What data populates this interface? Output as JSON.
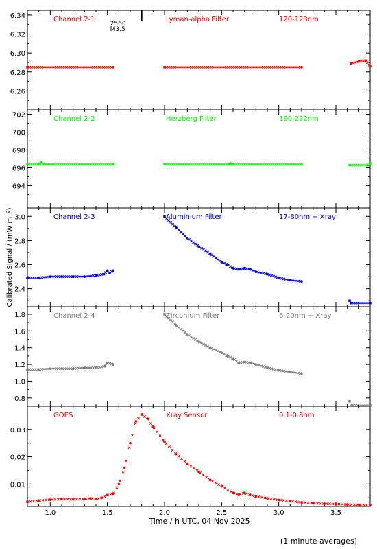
{
  "chart_data": {
    "type": "line",
    "xlabel": "Time / h UTC, 04 Nov 2025",
    "ylabel": "Calibrated Signal / (mW m⁻²)",
    "footnote": "(1 minute averages)",
    "xlim": [
      0.8,
      3.8
    ],
    "xticks": [
      "1.0",
      "1.5",
      "2.0",
      "2.5",
      "3.0",
      "3.5"
    ],
    "xtick_values": [
      1.0,
      1.5,
      2.0,
      2.5,
      3.0,
      3.5
    ],
    "flare_marker": {
      "x": 1.8,
      "labels": [
        "2560",
        "M3.5"
      ]
    },
    "panels": [
      {
        "channel": "Channel 2-1",
        "filter": "Lyman-alpha Filter",
        "band": "120-123nm",
        "color": "#ff0000",
        "ylim": [
          6.24,
          6.345
        ],
        "yticks": [
          "6.34",
          "6.32",
          "6.30",
          "6.28",
          "6.26"
        ],
        "ytick_values": [
          6.34,
          6.32,
          6.3,
          6.28,
          6.26
        ],
        "series": [
          {
            "x": [
              0.8,
              1.55
            ],
            "y": [
              6.285,
              6.285
            ]
          },
          {
            "x": [
              2.0,
              3.2
            ],
            "y": [
              6.285,
              6.285
            ]
          },
          {
            "x": [
              3.63,
              3.7,
              3.76,
              3.8
            ],
            "y": [
              6.289,
              6.291,
              6.292,
              6.286
            ]
          }
        ]
      },
      {
        "channel": "Channel 2-2",
        "filter": "Herzberg Filter",
        "band": "190-222nm",
        "color": "#00ff00",
        "ylim": [
          691.5,
          702.5
        ],
        "yticks": [
          "702",
          "700",
          "698",
          "696",
          "694"
        ],
        "ytick_values": [
          702,
          700,
          698,
          696,
          694
        ],
        "series": [
          {
            "x": [
              0.8,
              0.9,
              0.92,
              0.95,
              1.55
            ],
            "y": [
              696.4,
              696.4,
              696.6,
              696.4,
              696.4
            ]
          },
          {
            "x": [
              2.0,
              2.56,
              2.58,
              2.6,
              3.2
            ],
            "y": [
              696.4,
              696.4,
              696.5,
              696.4,
              696.4
            ]
          },
          {
            "x": [
              3.62,
              3.78,
              3.8
            ],
            "y": [
              696.3,
              696.3,
              696.5
            ]
          }
        ]
      },
      {
        "channel": "Channel 2-3",
        "filter": "Aluminium Filter",
        "band": "17-80nm + Xray",
        "color": "#0000dd",
        "ylim": [
          2.25,
          3.07
        ],
        "yticks": [
          "3.0",
          "2.8",
          "2.6",
          "2.4"
        ],
        "ytick_values": [
          3.0,
          2.8,
          2.6,
          2.4
        ],
        "series": [
          {
            "x": [
              0.8,
              0.9,
              1.0,
              1.1,
              1.2,
              1.3,
              1.4,
              1.47,
              1.5,
              1.52,
              1.55
            ],
            "y": [
              2.49,
              2.49,
              2.5,
              2.5,
              2.5,
              2.5,
              2.51,
              2.52,
              2.55,
              2.53,
              2.55
            ]
          },
          {
            "x": [
              2.0,
              2.1,
              2.2,
              2.3,
              2.4,
              2.5,
              2.55,
              2.6,
              2.65,
              2.7,
              2.75,
              2.8,
              2.9,
              3.0,
              3.1,
              3.2
            ],
            "y": [
              3.0,
              2.91,
              2.82,
              2.75,
              2.69,
              2.62,
              2.6,
              2.57,
              2.56,
              2.57,
              2.56,
              2.54,
              2.52,
              2.49,
              2.47,
              2.46
            ]
          },
          {
            "x": [
              3.62,
              3.63,
              3.8
            ],
            "y": [
              2.3,
              2.28,
              2.28
            ]
          }
        ]
      },
      {
        "channel": "Channel 2-4",
        "filter": "Zirconium Filter",
        "band": "6-20nm + Xray",
        "color": "#808080",
        "ylim": [
          0.7,
          1.89
        ],
        "yticks": [
          "1.8",
          "1.6",
          "1.4",
          "1.2",
          "1.0",
          "0.8"
        ],
        "ytick_values": [
          1.8,
          1.6,
          1.4,
          1.2,
          1.0,
          0.8
        ],
        "series": [
          {
            "x": [
              0.8,
              0.9,
              1.0,
              1.1,
              1.2,
              1.3,
              1.4,
              1.48,
              1.5,
              1.55
            ],
            "y": [
              1.14,
              1.14,
              1.15,
              1.15,
              1.15,
              1.16,
              1.16,
              1.18,
              1.22,
              1.2
            ]
          },
          {
            "x": [
              2.0,
              2.1,
              2.2,
              2.3,
              2.4,
              2.5,
              2.55,
              2.6,
              2.65,
              2.7,
              2.75,
              2.8,
              2.9,
              3.0,
              3.1,
              3.2
            ],
            "y": [
              1.8,
              1.67,
              1.56,
              1.47,
              1.4,
              1.34,
              1.3,
              1.27,
              1.22,
              1.23,
              1.22,
              1.2,
              1.16,
              1.13,
              1.11,
              1.09
            ]
          },
          {
            "x": [
              3.62,
              3.64,
              3.8
            ],
            "y": [
              0.76,
              0.71,
              0.71
            ]
          }
        ]
      },
      {
        "channel": "GOES",
        "filter": "Xray Sensor",
        "band": "0.1-0.8nm",
        "color": "#ff0000",
        "ylim": [
          0.0018,
          0.0385
        ],
        "yticks": [
          "0.03",
          "0.02",
          "0.01"
        ],
        "ytick_values": [
          0.03,
          0.02,
          0.01
        ],
        "series": [
          {
            "x": [
              0.8,
              0.9,
              1.0,
              1.1,
              1.2,
              1.3,
              1.35,
              1.4,
              1.45,
              1.5,
              1.55,
              1.6,
              1.65,
              1.7,
              1.75,
              1.8,
              1.85,
              1.9,
              2.0,
              2.1,
              2.2,
              2.3,
              2.4,
              2.5,
              2.6,
              2.65,
              2.7,
              2.75,
              2.8,
              2.9,
              3.0,
              3.1,
              3.2,
              3.3,
              3.4,
              3.5,
              3.6,
              3.7,
              3.8
            ],
            "y": [
              0.0035,
              0.004,
              0.0043,
              0.0045,
              0.0044,
              0.0045,
              0.0048,
              0.0045,
              0.005,
              0.006,
              0.0063,
              0.01,
              0.016,
              0.025,
              0.033,
              0.0355,
              0.034,
              0.031,
              0.0255,
              0.021,
              0.0175,
              0.0145,
              0.0115,
              0.0092,
              0.0068,
              0.006,
              0.0068,
              0.006,
              0.0055,
              0.0048,
              0.0042,
              0.0038,
              0.0033,
              0.003,
              0.0028,
              0.0027,
              0.0025,
              0.0024,
              0.0023
            ]
          }
        ]
      }
    ]
  }
}
